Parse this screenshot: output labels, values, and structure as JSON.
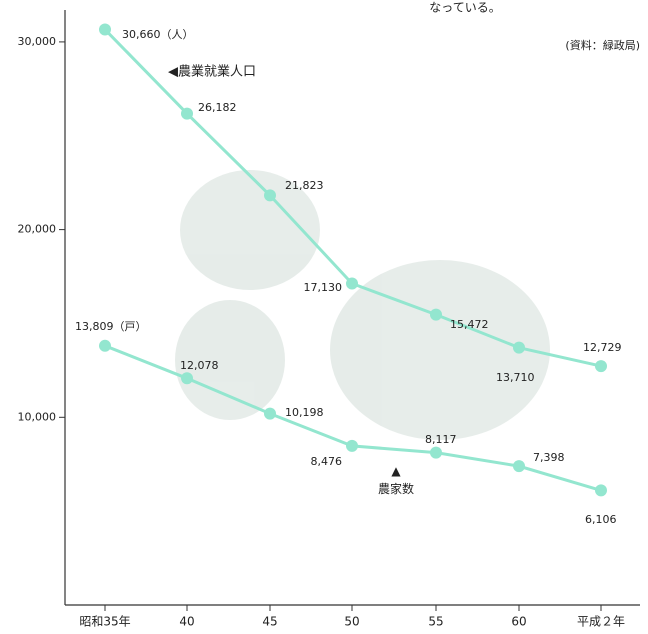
{
  "chart_data": {
    "type": "line",
    "categories": [
      "昭和35年",
      "40",
      "45",
      "50",
      "55",
      "60",
      "平成２年"
    ],
    "series": [
      {
        "name": "◀農業就業人口",
        "color": "#93e6cf",
        "values": [
          30660,
          26182,
          21823,
          17130,
          15472,
          13710,
          12729
        ],
        "value_labels": [
          "30,660（人）",
          "26,182",
          "21,823",
          "17,130",
          "15,472",
          "13,710",
          "12,729"
        ]
      },
      {
        "name": "▲\n農家数",
        "color": "#93e6cf",
        "values": [
          13809,
          12078,
          10198,
          8476,
          8117,
          7398,
          6106
        ],
        "value_labels": [
          "13,809（戸）",
          "12,078",
          "10,198",
          "8,476",
          "8,117",
          "7,398",
          "6,106"
        ]
      }
    ],
    "ylim": [
      0,
      31700
    ],
    "yticks": [
      {
        "value": 10000,
        "label": "10,000"
      },
      {
        "value": 20000,
        "label": "20,000"
      },
      {
        "value": 30000,
        "label": "30,000"
      }
    ],
    "annotations": [
      "なっている。",
      "(資料：緑政局)"
    ]
  }
}
